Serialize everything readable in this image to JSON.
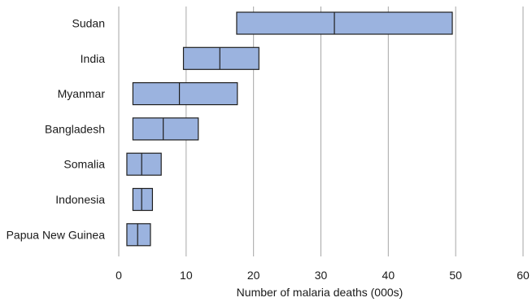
{
  "chart_data": {
    "type": "box-range",
    "title": "",
    "xlabel": "Number of malaria deaths (000s)",
    "ylabel": "",
    "xlim": [
      0,
      60
    ],
    "xticks": [
      0,
      10,
      20,
      30,
      40,
      50,
      60
    ],
    "grid": "vertical",
    "colors": {
      "box_fill": "#9bb3df",
      "box_stroke": "#1f1f1f",
      "grid": "#a6a6a6"
    },
    "categories": [
      "Sudan",
      "India",
      "Myanmar",
      "Bangladesh",
      "Somalia",
      "Indonesia",
      "Papua New Guinea"
    ],
    "series": [
      {
        "low": 17.5,
        "mid": 32.0,
        "high": 49.5
      },
      {
        "low": 9.6,
        "mid": 15.0,
        "high": 20.8
      },
      {
        "low": 2.1,
        "mid": 9.0,
        "high": 17.6
      },
      {
        "low": 2.1,
        "mid": 6.6,
        "high": 11.8
      },
      {
        "low": 1.2,
        "mid": 3.4,
        "high": 6.3
      },
      {
        "low": 2.1,
        "mid": 3.4,
        "high": 5.0
      },
      {
        "low": 1.2,
        "mid": 2.8,
        "high": 4.7
      }
    ]
  }
}
